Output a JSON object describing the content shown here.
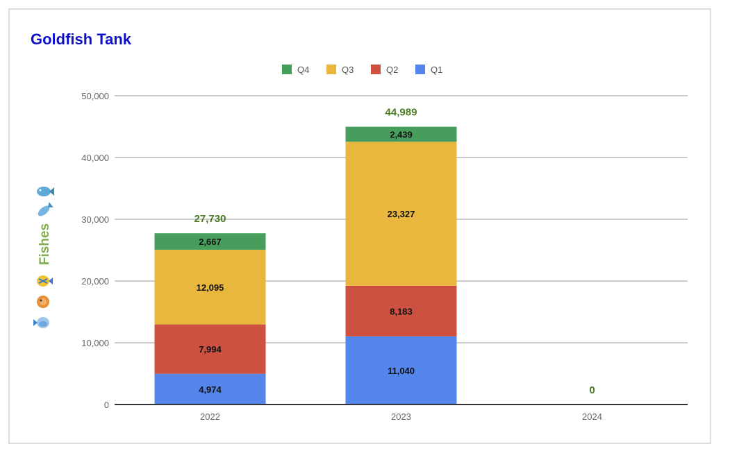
{
  "chart_data": {
    "type": "bar",
    "stacked": true,
    "title": "Goldfish Tank",
    "ylabel": "Fishes",
    "xlabel": "",
    "categories": [
      "2022",
      "2023",
      "2024"
    ],
    "series": [
      {
        "name": "Q1",
        "color": "#5385ea",
        "values": [
          4974,
          11040,
          0
        ],
        "labels": [
          "4,974",
          "11,040",
          ""
        ]
      },
      {
        "name": "Q2",
        "color": "#cc5140",
        "values": [
          7994,
          8183,
          0
        ],
        "labels": [
          "7,994",
          "8,183",
          ""
        ]
      },
      {
        "name": "Q3",
        "color": "#e9b73d",
        "values": [
          12095,
          23327,
          0
        ],
        "labels": [
          "12,095",
          "23,327",
          ""
        ]
      },
      {
        "name": "Q4",
        "color": "#479e5c",
        "values": [
          2667,
          2439,
          0
        ],
        "labels": [
          "2,667",
          "2,439",
          ""
        ]
      }
    ],
    "legend_order": [
      "Q4",
      "Q3",
      "Q2",
      "Q1"
    ],
    "totals": [
      "27,730",
      "44,989",
      "0"
    ],
    "ylim": [
      0,
      50000
    ],
    "yticks": [
      0,
      10000,
      20000,
      30000,
      40000,
      50000
    ],
    "ytick_labels": [
      "0",
      "10,000",
      "20,000",
      "30,000",
      "40,000",
      "50,000"
    ],
    "grid": true,
    "legend_position": "top-center"
  }
}
